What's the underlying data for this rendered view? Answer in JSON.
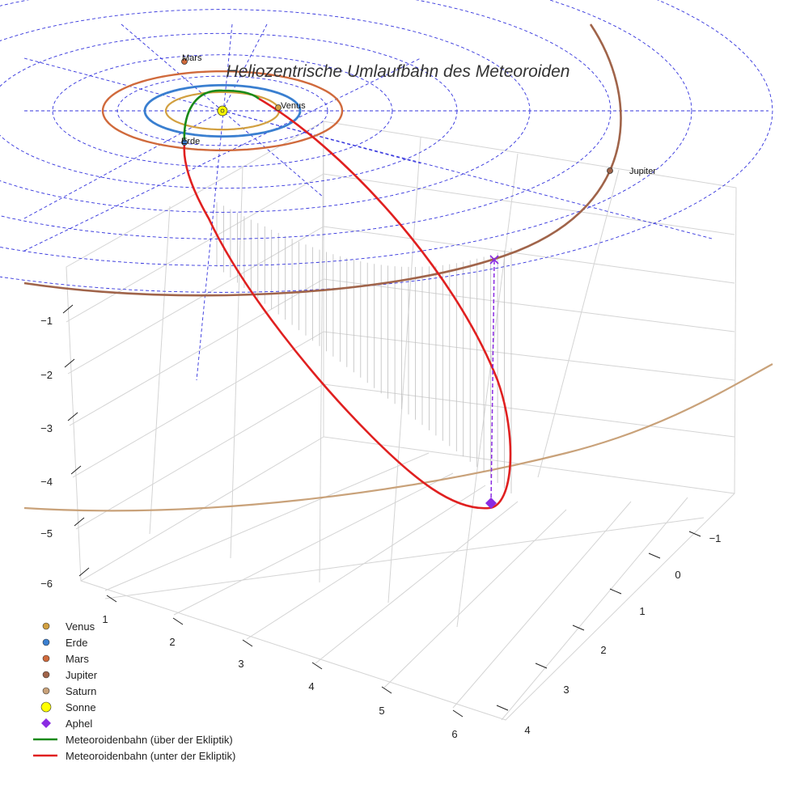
{
  "chart_data": {
    "type": "line",
    "title": "Heliozentrische Umlaufbahn des Meteoroiden",
    "xlabel": "",
    "ylabel": "",
    "zlabel": "",
    "x_ticks": [
      "1",
      "2",
      "3",
      "4",
      "5",
      "6"
    ],
    "y_ticks": [
      "−1",
      "0",
      "1",
      "2",
      "3",
      "4"
    ],
    "z_ticks": [
      "−1",
      "−2",
      "−3",
      "−4",
      "−5",
      "−6"
    ],
    "grid": true,
    "legend_position": "bottom-left",
    "colors": {
      "venus": "#d2a040",
      "erde": "#3a7fd0",
      "mars": "#d06a3c",
      "jupiter": "#a0644a",
      "saturn": "#c9a27a",
      "sonne": "#ffff00",
      "aphel": "#8a2be2",
      "above": "#1a8a1a",
      "below": "#e02020",
      "ecliptic_grid": "#3333dd"
    },
    "planet_labels": {
      "venus": "Venus",
      "erde": "Erde",
      "mars": "Mars",
      "jupiter": "Jupiter"
    },
    "legend": [
      {
        "label": "Venus",
        "marker": "dot",
        "color": "#d2a040"
      },
      {
        "label": "Erde",
        "marker": "dot",
        "color": "#3a7fd0"
      },
      {
        "label": "Mars",
        "marker": "dot",
        "color": "#d06a3c"
      },
      {
        "label": "Jupiter",
        "marker": "dot",
        "color": "#a0644a"
      },
      {
        "label": "Saturn",
        "marker": "dot",
        "color": "#c9a27a"
      },
      {
        "label": "Sonne",
        "marker": "bigdot",
        "color": "#ffff00"
      },
      {
        "label": "Aphel",
        "marker": "diamond",
        "color": "#8a2be2"
      },
      {
        "label": "Meteoroidenbahn (über der Ekliptik)",
        "marker": "line",
        "color": "#1a8a1a"
      },
      {
        "label": "Meteoroidenbahn (unter der Ekliptik)",
        "marker": "line",
        "color": "#e02020"
      }
    ]
  }
}
